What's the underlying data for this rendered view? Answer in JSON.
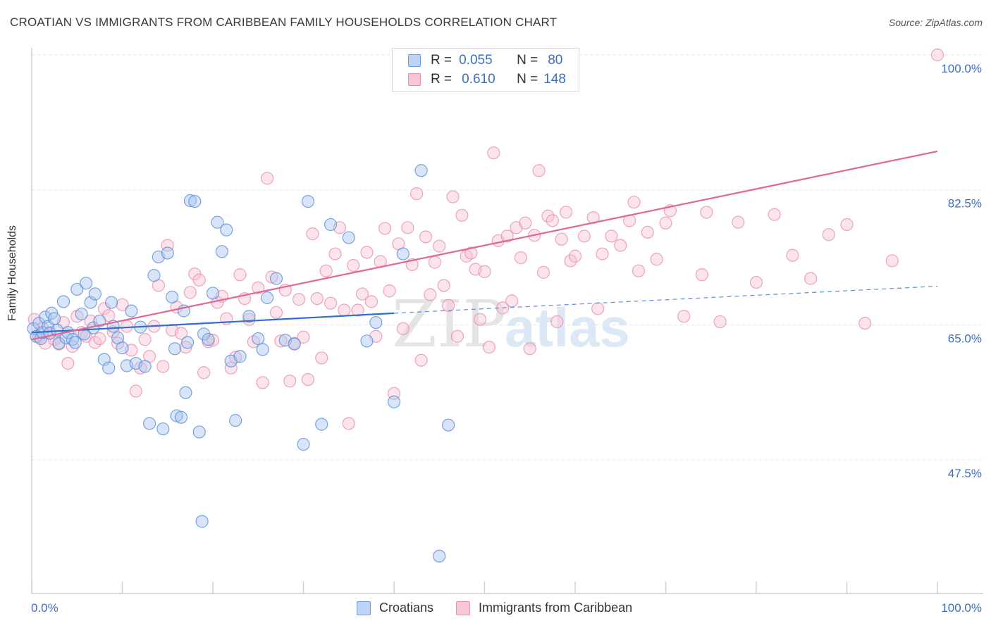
{
  "title": "CROATIAN VS IMMIGRANTS FROM CARIBBEAN FAMILY HOUSEHOLDS CORRELATION CHART",
  "source": "Source: ZipAtlas.com",
  "watermark_zip": "ZIP",
  "watermark_atlas": "atlas",
  "legend_top": {
    "r_label": "R =",
    "n_label": "N =",
    "rows": [
      {
        "r": "0.055",
        "n": "80",
        "color": "#6aa0e6",
        "fill": "#bcd3f3"
      },
      {
        "r": "0.610",
        "n": "148",
        "color": "#ea8fb0",
        "fill": "#f7c6d7"
      }
    ]
  },
  "chart_data": {
    "type": "scatter",
    "title": "CROATIAN VS IMMIGRANTS FROM CARIBBEAN FAMILY HOUSEHOLDS CORRELATION CHART",
    "xlabel": "",
    "ylabel": "Family Households",
    "xlim": [
      0,
      100
    ],
    "ylim": [
      35,
      100
    ],
    "x_tick_labels": [
      "0.0%",
      "100.0%"
    ],
    "y_tick_labels": [
      "100.0%",
      "82.5%",
      "65.0%",
      "47.5%"
    ],
    "y_tick_values": [
      100,
      82.5,
      65,
      47.5
    ],
    "grid": true,
    "legend_position": "bottom",
    "series": [
      {
        "name": "Croatians",
        "color": "#5b8fd9",
        "fill": "#a9c6ef",
        "trend": {
          "x0": 0,
          "y0": 64.0,
          "x1": 40,
          "y1": 66.5,
          "dash_x1": 100,
          "dash_y1": 70.0
        },
        "points": [
          [
            0.2,
            64.5
          ],
          [
            0.5,
            63.5
          ],
          [
            0.8,
            65.2
          ],
          [
            1.0,
            63.2
          ],
          [
            1.2,
            64.0
          ],
          [
            1.5,
            66.0
          ],
          [
            1.8,
            64.8
          ],
          [
            2.0,
            63.9
          ],
          [
            2.2,
            66.5
          ],
          [
            2.5,
            65.8
          ],
          [
            2.8,
            64.3
          ],
          [
            3.0,
            62.6
          ],
          [
            3.5,
            68.0
          ],
          [
            3.8,
            63.3
          ],
          [
            4.0,
            64.0
          ],
          [
            4.5,
            63.1
          ],
          [
            4.8,
            62.7
          ],
          [
            5.0,
            69.6
          ],
          [
            5.5,
            66.4
          ],
          [
            5.8,
            63.8
          ],
          [
            6.0,
            70.4
          ],
          [
            6.5,
            67.9
          ],
          [
            6.8,
            64.6
          ],
          [
            7.0,
            69.0
          ],
          [
            7.5,
            65.5
          ],
          [
            8.0,
            60.5
          ],
          [
            8.5,
            59.4
          ],
          [
            8.8,
            67.9
          ],
          [
            9.0,
            64.8
          ],
          [
            9.5,
            63.3
          ],
          [
            10.0,
            62.0
          ],
          [
            10.5,
            59.7
          ],
          [
            11.0,
            66.8
          ],
          [
            11.5,
            60.0
          ],
          [
            12.0,
            64.7
          ],
          [
            12.5,
            59.6
          ],
          [
            13.0,
            52.2
          ],
          [
            13.5,
            71.4
          ],
          [
            14.0,
            73.8
          ],
          [
            14.5,
            51.5
          ],
          [
            15.0,
            74.3
          ],
          [
            15.5,
            68.6
          ],
          [
            15.8,
            61.9
          ],
          [
            16.0,
            53.2
          ],
          [
            16.5,
            53.0
          ],
          [
            16.8,
            66.8
          ],
          [
            17.0,
            56.2
          ],
          [
            17.2,
            62.7
          ],
          [
            17.5,
            81.1
          ],
          [
            18.0,
            81.0
          ],
          [
            18.5,
            51.1
          ],
          [
            18.8,
            39.5
          ],
          [
            19.0,
            63.8
          ],
          [
            19.5,
            63.1
          ],
          [
            20.0,
            69.1
          ],
          [
            20.5,
            78.3
          ],
          [
            21.0,
            74.5
          ],
          [
            21.5,
            77.3
          ],
          [
            22.0,
            60.3
          ],
          [
            22.5,
            52.6
          ],
          [
            23.0,
            60.9
          ],
          [
            24.0,
            66.1
          ],
          [
            25.0,
            63.2
          ],
          [
            25.5,
            61.8
          ],
          [
            26.0,
            68.5
          ],
          [
            27.0,
            71.0
          ],
          [
            28.0,
            63.0
          ],
          [
            29.0,
            62.5
          ],
          [
            30.0,
            49.5
          ],
          [
            30.5,
            81.0
          ],
          [
            32.0,
            52.1
          ],
          [
            33.0,
            78.0
          ],
          [
            35.0,
            76.3
          ],
          [
            37.0,
            62.9
          ],
          [
            38.0,
            65.3
          ],
          [
            40.0,
            55.0
          ],
          [
            41.0,
            74.2
          ],
          [
            43.0,
            85.0
          ],
          [
            45.0,
            35.0
          ],
          [
            46.0,
            52.0
          ]
        ]
      },
      {
        "name": "Immigrants from Caribbean",
        "color": "#e98fae",
        "fill": "#f6c3d5",
        "trend": {
          "x0": 0,
          "y0": 63.1,
          "x1": 100,
          "y1": 87.5
        },
        "points": [
          [
            0.3,
            65.7
          ],
          [
            0.8,
            63.4
          ],
          [
            1.2,
            64.5
          ],
          [
            1.5,
            62.6
          ],
          [
            2.0,
            64.0
          ],
          [
            2.5,
            63.1
          ],
          [
            3.0,
            62.5
          ],
          [
            3.5,
            65.3
          ],
          [
            4.0,
            60.0
          ],
          [
            4.5,
            62.2
          ],
          [
            5.0,
            66.1
          ],
          [
            5.5,
            64.0
          ],
          [
            6.0,
            63.5
          ],
          [
            6.5,
            65.5
          ],
          [
            7.0,
            62.7
          ],
          [
            7.5,
            63.2
          ],
          [
            8.0,
            67.1
          ],
          [
            8.5,
            66.2
          ],
          [
            9.0,
            64.1
          ],
          [
            9.5,
            62.6
          ],
          [
            10.0,
            67.6
          ],
          [
            10.5,
            64.8
          ],
          [
            11.0,
            61.7
          ],
          [
            11.5,
            56.4
          ],
          [
            12.0,
            59.4
          ],
          [
            12.5,
            63.1
          ],
          [
            13.0,
            60.9
          ],
          [
            13.5,
            64.8
          ],
          [
            14.0,
            70.1
          ],
          [
            14.5,
            59.6
          ],
          [
            15.0,
            75.3
          ],
          [
            15.5,
            64.3
          ],
          [
            16.0,
            67.3
          ],
          [
            16.5,
            63.9
          ],
          [
            17.0,
            62.1
          ],
          [
            17.5,
            69.2
          ],
          [
            18.0,
            71.6
          ],
          [
            18.5,
            70.8
          ],
          [
            19.0,
            58.8
          ],
          [
            19.5,
            62.8
          ],
          [
            20.0,
            63.0
          ],
          [
            20.5,
            67.9
          ],
          [
            21.0,
            68.7
          ],
          [
            21.5,
            65.8
          ],
          [
            22.0,
            59.4
          ],
          [
            22.5,
            60.8
          ],
          [
            23.0,
            71.5
          ],
          [
            23.5,
            68.4
          ],
          [
            24.0,
            65.7
          ],
          [
            24.5,
            62.8
          ],
          [
            25.0,
            69.8
          ],
          [
            25.5,
            57.5
          ],
          [
            26.0,
            84.0
          ],
          [
            26.5,
            71.2
          ],
          [
            27.0,
            66.6
          ],
          [
            27.5,
            62.9
          ],
          [
            28.0,
            69.5
          ],
          [
            28.5,
            57.7
          ],
          [
            29.0,
            62.6
          ],
          [
            29.5,
            68.3
          ],
          [
            30.0,
            63.4
          ],
          [
            30.5,
            57.9
          ],
          [
            31.0,
            76.8
          ],
          [
            31.5,
            68.4
          ],
          [
            32.0,
            60.7
          ],
          [
            32.5,
            72.0
          ],
          [
            33.0,
            67.8
          ],
          [
            33.5,
            74.2
          ],
          [
            34.0,
            77.6
          ],
          [
            34.5,
            66.9
          ],
          [
            35.0,
            52.2
          ],
          [
            35.5,
            72.7
          ],
          [
            36.0,
            66.9
          ],
          [
            36.5,
            69.0
          ],
          [
            37.0,
            74.4
          ],
          [
            37.5,
            68.0
          ],
          [
            38.0,
            63.5
          ],
          [
            38.5,
            73.2
          ],
          [
            39.0,
            77.5
          ],
          [
            39.5,
            69.4
          ],
          [
            40.0,
            56.1
          ],
          [
            40.5,
            75.5
          ],
          [
            41.0,
            64.5
          ],
          [
            41.5,
            77.6
          ],
          [
            42.0,
            72.8
          ],
          [
            42.5,
            82.0
          ],
          [
            43.0,
            60.4
          ],
          [
            43.5,
            76.4
          ],
          [
            44.0,
            68.9
          ],
          [
            44.5,
            73.1
          ],
          [
            45.0,
            75.2
          ],
          [
            45.5,
            70.1
          ],
          [
            46.0,
            67.5
          ],
          [
            46.5,
            81.6
          ],
          [
            47.0,
            63.5
          ],
          [
            47.5,
            79.2
          ],
          [
            48.0,
            73.9
          ],
          [
            48.5,
            74.3
          ],
          [
            49.0,
            72.2
          ],
          [
            49.5,
            65.7
          ],
          [
            50.0,
            71.9
          ],
          [
            50.5,
            62.1
          ],
          [
            51.0,
            87.3
          ],
          [
            51.5,
            75.9
          ],
          [
            52.0,
            67.2
          ],
          [
            52.5,
            76.5
          ],
          [
            53.0,
            68.1
          ],
          [
            53.5,
            77.6
          ],
          [
            54.0,
            73.7
          ],
          [
            54.5,
            78.2
          ],
          [
            55.0,
            61.9
          ],
          [
            55.5,
            76.6
          ],
          [
            56.0,
            85.0
          ],
          [
            56.5,
            71.8
          ],
          [
            57.0,
            79.1
          ],
          [
            57.5,
            78.5
          ],
          [
            58.0,
            65.4
          ],
          [
            58.5,
            76.1
          ],
          [
            59.0,
            79.6
          ],
          [
            59.5,
            73.3
          ],
          [
            60.0,
            73.9
          ],
          [
            61.0,
            76.5
          ],
          [
            62.0,
            78.9
          ],
          [
            63.0,
            74.2
          ],
          [
            64.0,
            76.5
          ],
          [
            65.0,
            75.3
          ],
          [
            66.0,
            78.5
          ],
          [
            67.0,
            72.0
          ],
          [
            68.0,
            77.0
          ],
          [
            69.0,
            73.5
          ],
          [
            70.0,
            78.2
          ],
          [
            72.0,
            66.1
          ],
          [
            74.0,
            71.5
          ],
          [
            76.0,
            65.4
          ],
          [
            78.0,
            78.3
          ],
          [
            80.0,
            70.5
          ],
          [
            82.0,
            79.3
          ],
          [
            84.0,
            74.0
          ],
          [
            86.0,
            71.0
          ],
          [
            88.0,
            76.7
          ],
          [
            90.0,
            78.0
          ],
          [
            92.0,
            65.2
          ],
          [
            95.0,
            73.3
          ],
          [
            100.0,
            100.0
          ],
          [
            62.5,
            67.1
          ],
          [
            66.5,
            80.9
          ],
          [
            70.5,
            79.8
          ],
          [
            74.5,
            79.6
          ]
        ]
      }
    ]
  },
  "bottom_legend": [
    {
      "label": "Croatians",
      "color": "#6aa0e6",
      "fill": "#bcd3f3"
    },
    {
      "label": "Immigrants from Caribbean",
      "color": "#ea8fb0",
      "fill": "#f7c6d7"
    }
  ]
}
